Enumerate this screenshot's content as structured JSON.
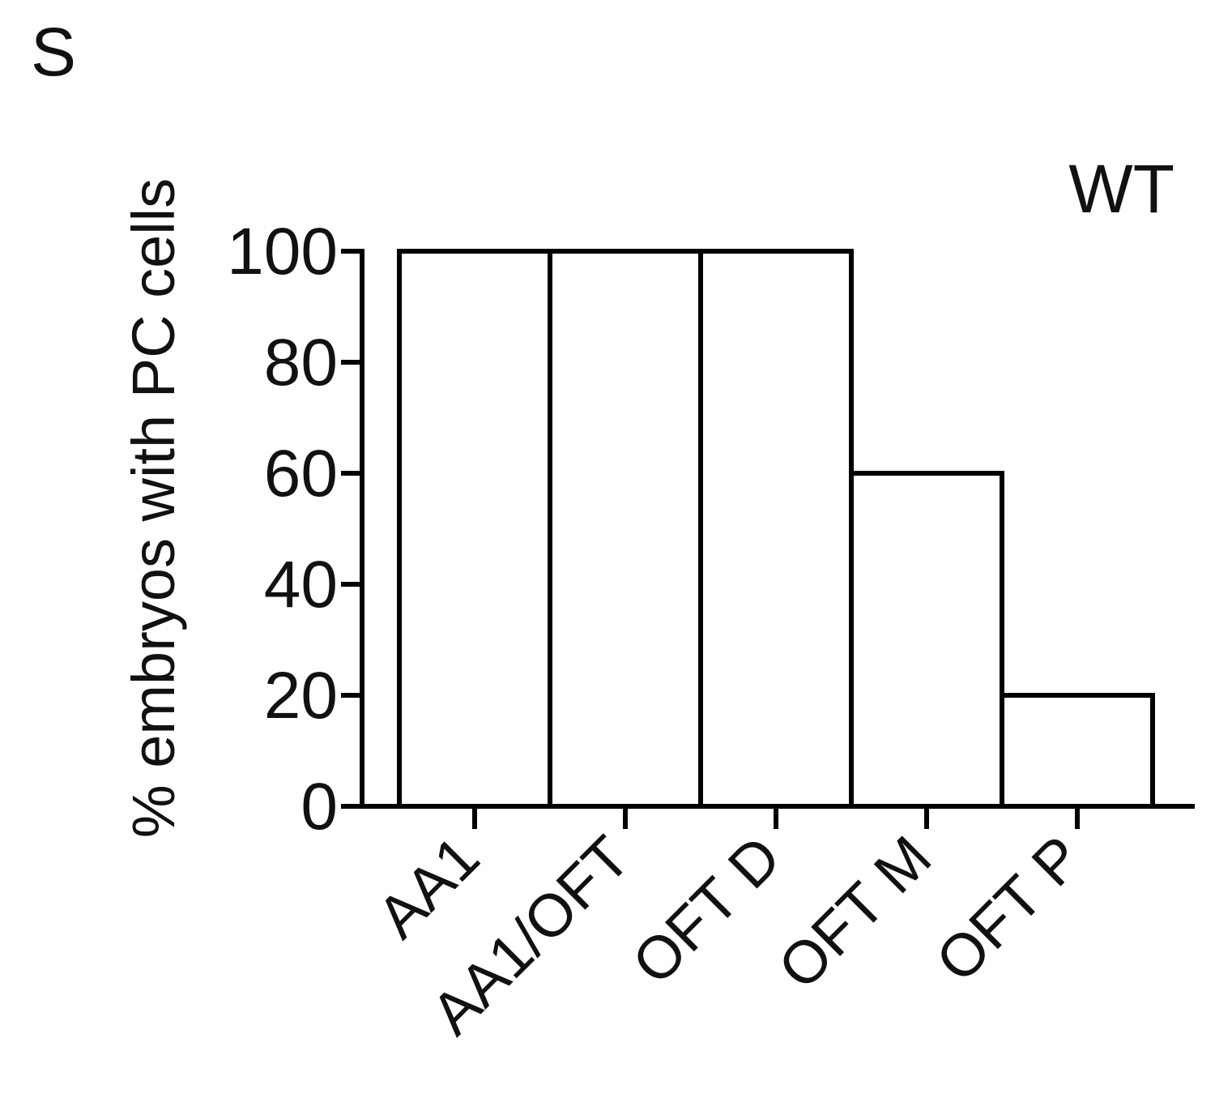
{
  "panel_label": "S",
  "chart_data": {
    "type": "bar",
    "title": "WT",
    "categories": [
      "AA1",
      "AA1/OFT",
      "OFT D",
      "OFT M",
      "OFT P"
    ],
    "values": [
      100,
      100,
      100,
      60,
      20
    ],
    "xlabel": "",
    "ylabel": "% embryos with PC cells",
    "ylim": [
      0,
      100
    ],
    "yticks": [
      0,
      20,
      40,
      60,
      80,
      100
    ],
    "grid": false,
    "bar_fill": "#ffffff",
    "bar_stroke": "#000000"
  }
}
